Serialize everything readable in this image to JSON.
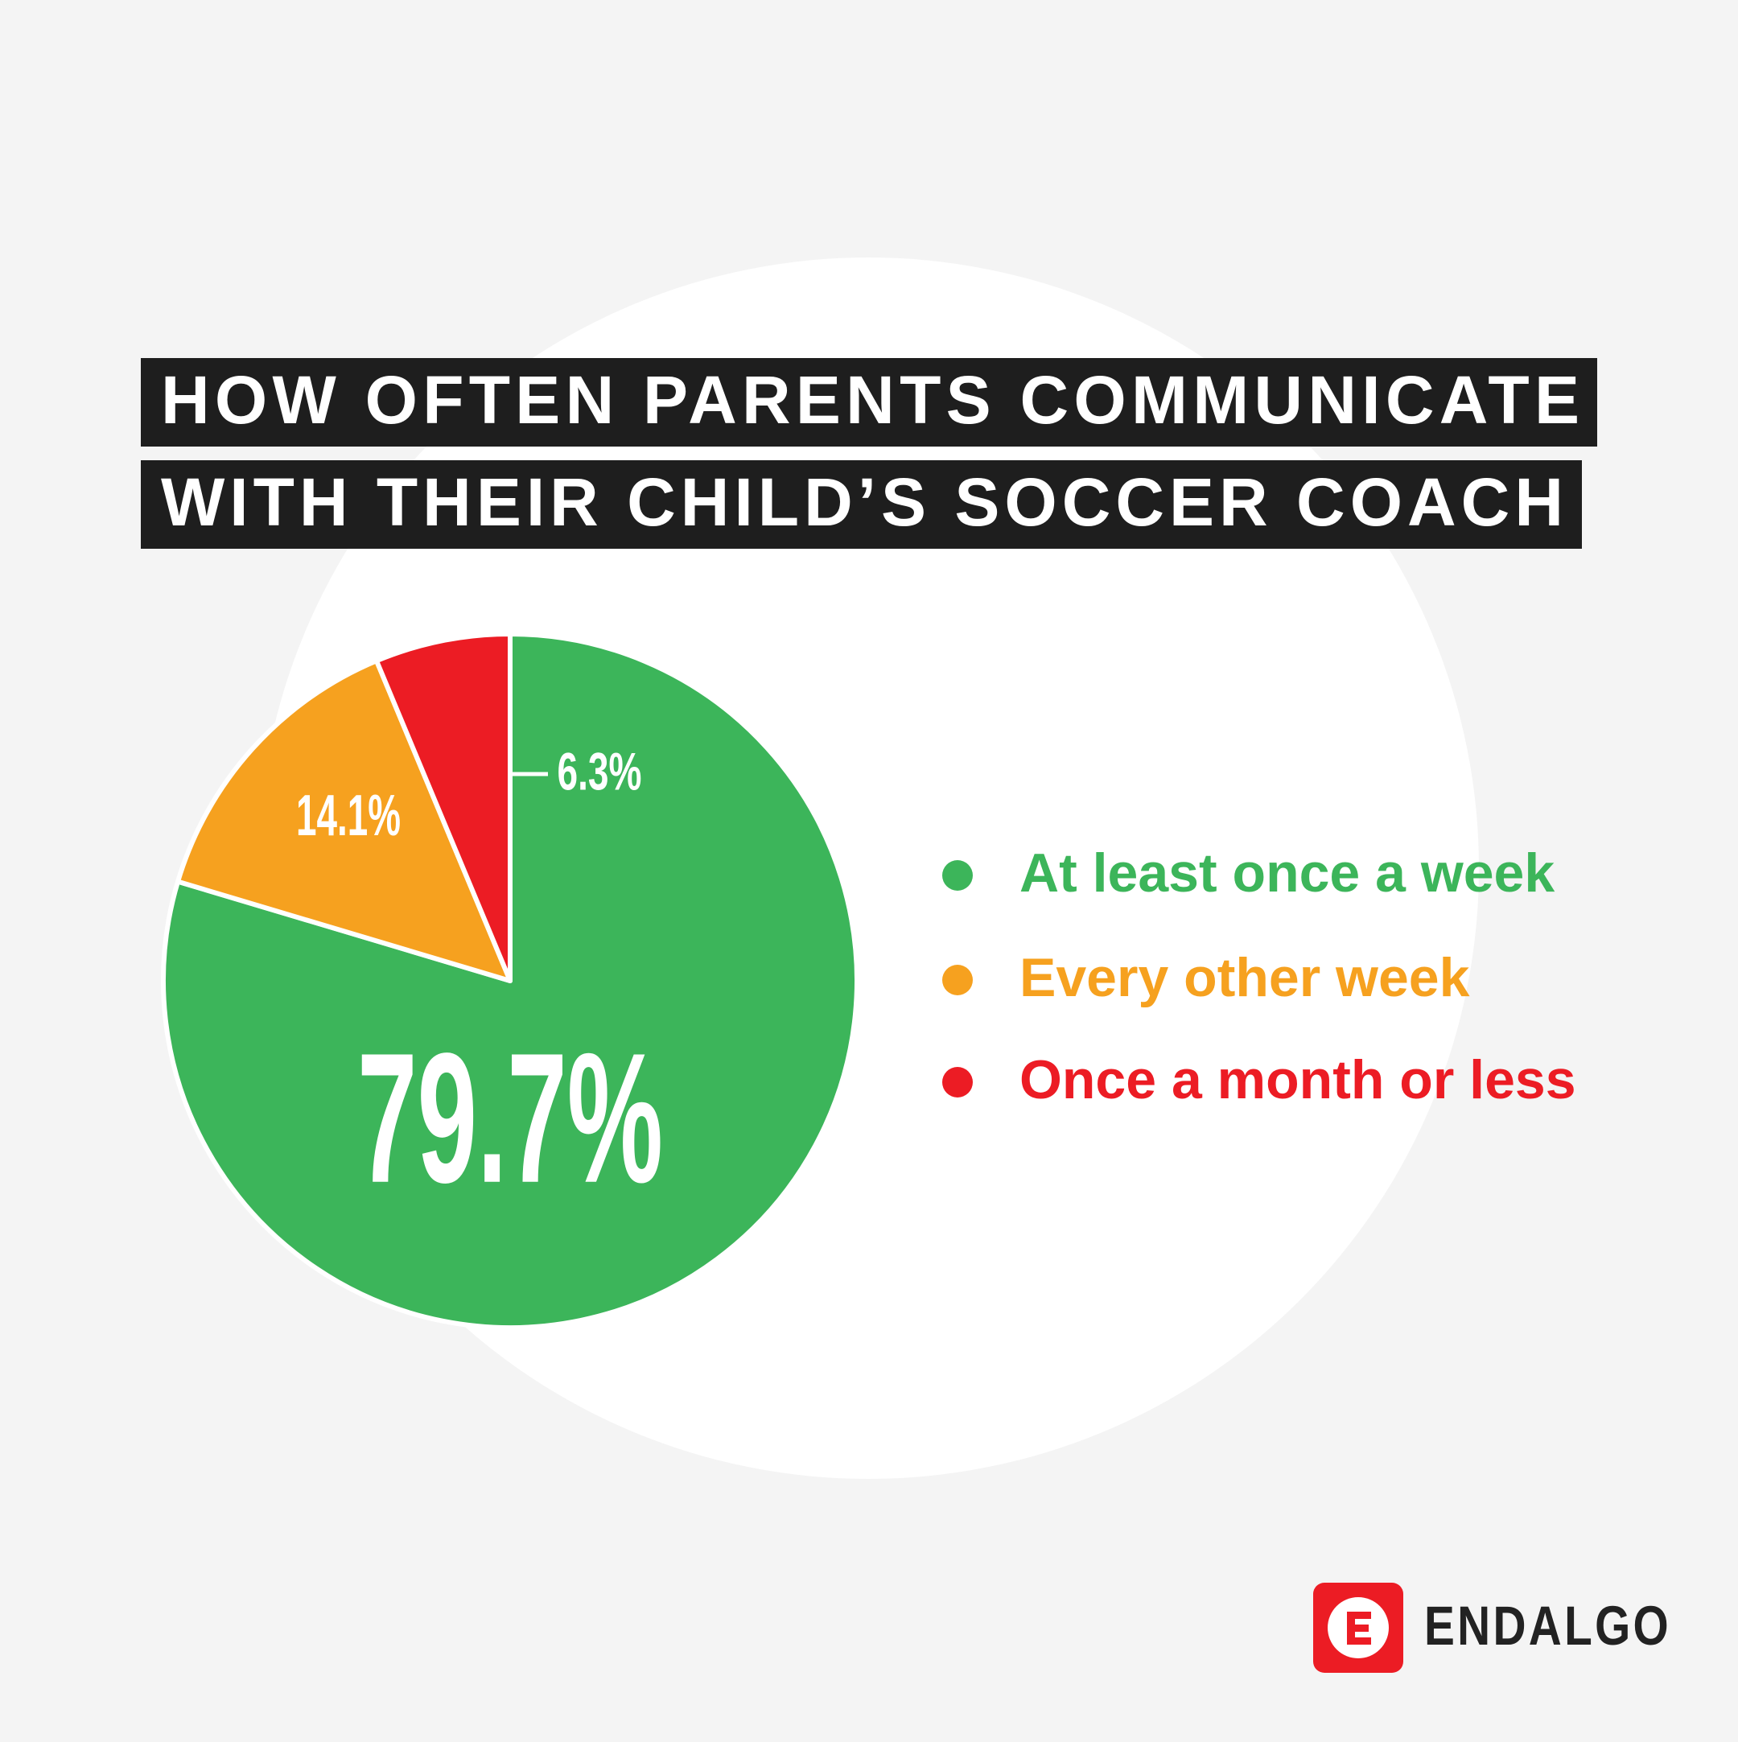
{
  "chart_data": {
    "type": "pie",
    "title": [
      "HOW OFTEN PARENTS COMMUNICATE",
      "WITH THEIR CHILD’S SOCCER COACH"
    ],
    "categories": [
      "At least once a week",
      "Every other week",
      "Once a month or less"
    ],
    "values": [
      79.7,
      14.1,
      6.3
    ],
    "value_labels": [
      "79.7%",
      "14.1%",
      "6.3%"
    ],
    "colors": [
      "#3cb55a",
      "#f6a11f",
      "#ec1c24"
    ]
  },
  "brand": "ENDALGO"
}
